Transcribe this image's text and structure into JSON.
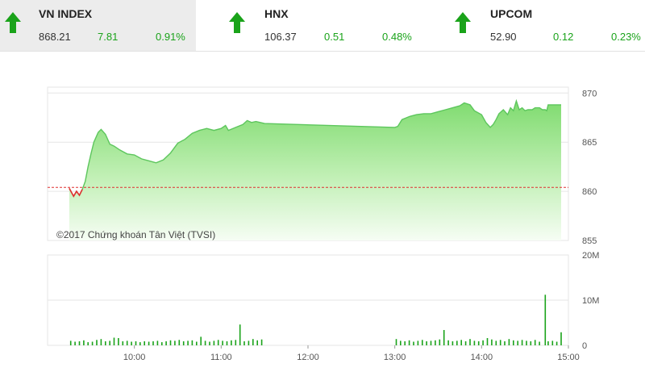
{
  "indices": [
    {
      "name": "VN INDEX",
      "price": "868.21",
      "change": "7.81",
      "pct": "0.91%"
    },
    {
      "name": "HNX",
      "price": "106.37",
      "change": "0.51",
      "pct": "0.48%"
    },
    {
      "name": "UPCOM",
      "price": "52.90",
      "change": "0.12",
      "pct": "0.23%"
    }
  ],
  "colors": {
    "up": "#1aa31a",
    "area": "#8ee07e",
    "line": "#5dc65d",
    "ref": "#e03030",
    "grid": "#e6e6e6"
  },
  "chart_data": {
    "type": "area",
    "copyright": "©2017 Chứng khoán Tân Việt (TVSI)",
    "reference_value": 860.4,
    "price_axis": {
      "ylim": [
        855,
        870.6
      ],
      "ticks": [
        "870",
        "865",
        "860",
        "855"
      ]
    },
    "volume_axis": {
      "ylim": [
        0,
        20
      ],
      "ticks": [
        "20M",
        "10M",
        "0"
      ]
    },
    "x_ticks": [
      "10:00",
      "11:00",
      "12:00",
      "13:00",
      "14:00",
      "15:00"
    ],
    "x_range": [
      "09:00",
      "15:00"
    ],
    "price_series": [
      [
        "09:15",
        860.3
      ],
      [
        "09:18",
        859.5
      ],
      [
        "09:20",
        860.0
      ],
      [
        "09:22",
        859.6
      ],
      [
        "09:24",
        860.2
      ],
      [
        "09:26",
        861.0
      ],
      [
        "09:28",
        862.5
      ],
      [
        "09:30",
        863.8
      ],
      [
        "09:32",
        865.0
      ],
      [
        "09:35",
        866.0
      ],
      [
        "09:37",
        866.3
      ],
      [
        "09:40",
        865.8
      ],
      [
        "09:43",
        864.8
      ],
      [
        "09:46",
        864.6
      ],
      [
        "09:50",
        864.2
      ],
      [
        "09:55",
        863.8
      ],
      [
        "10:00",
        863.7
      ],
      [
        "10:05",
        863.3
      ],
      [
        "10:10",
        863.1
      ],
      [
        "10:15",
        862.9
      ],
      [
        "10:20",
        863.2
      ],
      [
        "10:25",
        863.9
      ],
      [
        "10:30",
        864.9
      ],
      [
        "10:35",
        865.3
      ],
      [
        "10:40",
        865.9
      ],
      [
        "10:45",
        866.2
      ],
      [
        "10:50",
        866.4
      ],
      [
        "10:55",
        866.2
      ],
      [
        "11:00",
        866.4
      ],
      [
        "11:03",
        866.7
      ],
      [
        "11:05",
        866.2
      ],
      [
        "11:10",
        866.5
      ],
      [
        "11:15",
        866.8
      ],
      [
        "11:18",
        867.2
      ],
      [
        "11:21",
        867.0
      ],
      [
        "11:24",
        867.1
      ],
      [
        "11:27",
        867.0
      ],
      [
        "11:30",
        866.9
      ],
      [
        "13:00",
        866.5
      ],
      [
        "13:02",
        866.6
      ],
      [
        "13:05",
        867.3
      ],
      [
        "13:10",
        867.6
      ],
      [
        "13:15",
        867.8
      ],
      [
        "13:20",
        867.9
      ],
      [
        "13:25",
        867.9
      ],
      [
        "13:30",
        868.1
      ],
      [
        "13:35",
        868.3
      ],
      [
        "13:40",
        868.5
      ],
      [
        "13:45",
        868.7
      ],
      [
        "13:48",
        869.0
      ],
      [
        "13:52",
        868.8
      ],
      [
        "13:55",
        868.2
      ],
      [
        "14:00",
        867.8
      ],
      [
        "14:03",
        867.0
      ],
      [
        "14:06",
        866.5
      ],
      [
        "14:08",
        866.8
      ],
      [
        "14:10",
        867.3
      ],
      [
        "14:12",
        867.9
      ],
      [
        "14:15",
        868.3
      ],
      [
        "14:18",
        867.8
      ],
      [
        "14:20",
        868.5
      ],
      [
        "14:22",
        868.2
      ],
      [
        "14:24",
        869.2
      ],
      [
        "14:26",
        868.3
      ],
      [
        "14:28",
        868.5
      ],
      [
        "14:30",
        868.2
      ],
      [
        "14:32",
        868.3
      ],
      [
        "14:35",
        868.3
      ],
      [
        "14:37",
        868.5
      ],
      [
        "14:40",
        868.5
      ],
      [
        "14:42",
        868.3
      ],
      [
        "14:44",
        868.3
      ],
      [
        "14:45",
        868.2
      ],
      [
        "14:46",
        868.8
      ],
      [
        "14:50",
        868.8
      ],
      [
        "14:55",
        868.8
      ]
    ],
    "volume_series": [
      [
        "09:16",
        1.0
      ],
      [
        "09:19",
        0.8
      ],
      [
        "09:22",
        0.9
      ],
      [
        "09:25",
        1.1
      ],
      [
        "09:28",
        0.7
      ],
      [
        "09:31",
        0.8
      ],
      [
        "09:34",
        1.2
      ],
      [
        "09:37",
        1.4
      ],
      [
        "09:40",
        0.9
      ],
      [
        "09:43",
        1.0
      ],
      [
        "09:46",
        1.7
      ],
      [
        "09:49",
        1.6
      ],
      [
        "09:52",
        0.9
      ],
      [
        "09:55",
        1.0
      ],
      [
        "09:58",
        0.8
      ],
      [
        "10:01",
        0.9
      ],
      [
        "10:04",
        0.7
      ],
      [
        "10:07",
        0.9
      ],
      [
        "10:10",
        0.8
      ],
      [
        "10:13",
        0.9
      ],
      [
        "10:16",
        1.0
      ],
      [
        "10:19",
        0.7
      ],
      [
        "10:22",
        0.9
      ],
      [
        "10:25",
        1.1
      ],
      [
        "10:28",
        1.0
      ],
      [
        "10:31",
        1.2
      ],
      [
        "10:34",
        0.9
      ],
      [
        "10:37",
        1.0
      ],
      [
        "10:40",
        1.1
      ],
      [
        "10:43",
        0.8
      ],
      [
        "10:46",
        1.9
      ],
      [
        "10:49",
        1.0
      ],
      [
        "10:52",
        0.8
      ],
      [
        "10:55",
        1.0
      ],
      [
        "10:58",
        1.2
      ],
      [
        "11:01",
        1.0
      ],
      [
        "11:04",
        0.9
      ],
      [
        "11:07",
        1.1
      ],
      [
        "11:10",
        1.2
      ],
      [
        "11:13",
        4.6
      ],
      [
        "11:16",
        0.9
      ],
      [
        "11:19",
        1.0
      ],
      [
        "11:22",
        1.4
      ],
      [
        "11:25",
        1.1
      ],
      [
        "11:28",
        1.3
      ],
      [
        "13:01",
        1.4
      ],
      [
        "13:04",
        1.0
      ],
      [
        "13:07",
        0.9
      ],
      [
        "13:10",
        1.1
      ],
      [
        "13:13",
        0.8
      ],
      [
        "13:16",
        1.0
      ],
      [
        "13:19",
        1.2
      ],
      [
        "13:22",
        0.9
      ],
      [
        "13:25",
        1.0
      ],
      [
        "13:28",
        1.1
      ],
      [
        "13:31",
        1.3
      ],
      [
        "13:34",
        3.4
      ],
      [
        "13:37",
        1.1
      ],
      [
        "13:40",
        0.9
      ],
      [
        "13:43",
        1.0
      ],
      [
        "13:46",
        1.2
      ],
      [
        "13:49",
        0.9
      ],
      [
        "13:52",
        1.4
      ],
      [
        "13:55",
        1.0
      ],
      [
        "13:58",
        0.9
      ],
      [
        "14:01",
        1.1
      ],
      [
        "14:04",
        1.6
      ],
      [
        "14:07",
        1.3
      ],
      [
        "14:10",
        1.0
      ],
      [
        "14:13",
        1.2
      ],
      [
        "14:16",
        0.9
      ],
      [
        "14:19",
        1.4
      ],
      [
        "14:22",
        1.1
      ],
      [
        "14:25",
        1.0
      ],
      [
        "14:28",
        1.2
      ],
      [
        "14:31",
        1.0
      ],
      [
        "14:34",
        0.9
      ],
      [
        "14:37",
        1.2
      ],
      [
        "14:40",
        0.8
      ],
      [
        "14:44",
        11.2
      ],
      [
        "14:46",
        0.9
      ],
      [
        "14:49",
        1.0
      ],
      [
        "14:52",
        0.8
      ],
      [
        "14:55",
        2.9
      ]
    ]
  }
}
